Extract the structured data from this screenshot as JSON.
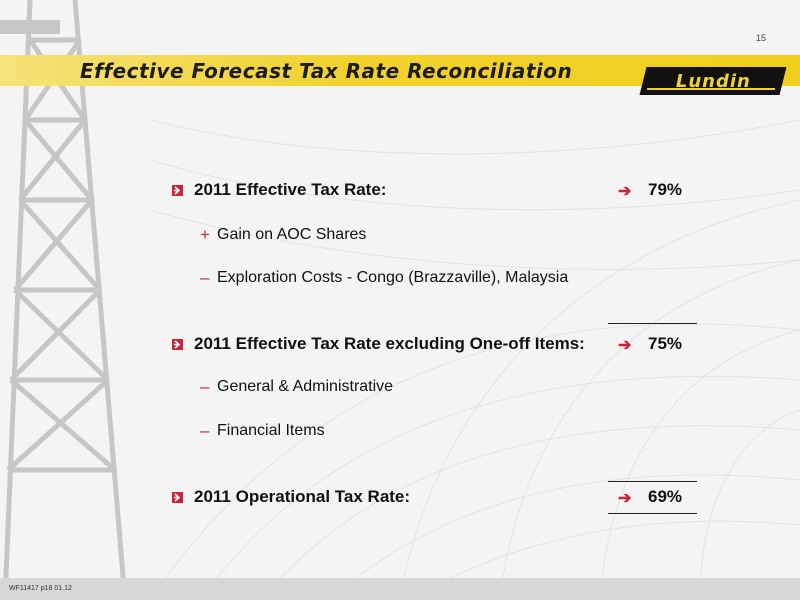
{
  "slide": {
    "page_number": "15",
    "title": "Effective Forecast Tax Rate Reconciliation",
    "logo_text": "Lundin",
    "footer_code": "WF11417 p18 01.12"
  },
  "rows": [
    {
      "label": "2011 Effective Tax Rate:",
      "value": "79%"
    },
    {
      "sign": "+",
      "label": "Gain on AOC Shares"
    },
    {
      "sign": "–",
      "label": "Exploration Costs - Congo (Brazzaville), Malaysia"
    },
    {
      "label": "2011 Effective Tax Rate excluding One-off Items:",
      "value": "75%"
    },
    {
      "sign": "–",
      "label": "General & Administrative"
    },
    {
      "sign": "–",
      "label": "Financial Items"
    },
    {
      "label": "2011 Operational Tax Rate:",
      "value": "69%"
    }
  ],
  "icons": {
    "bullet": "red-arrow-box-icon",
    "arrow": "right-arrow-icon"
  },
  "colors": {
    "accent_red": "#c9253a",
    "title_band_yellow": "#f1d12b"
  }
}
